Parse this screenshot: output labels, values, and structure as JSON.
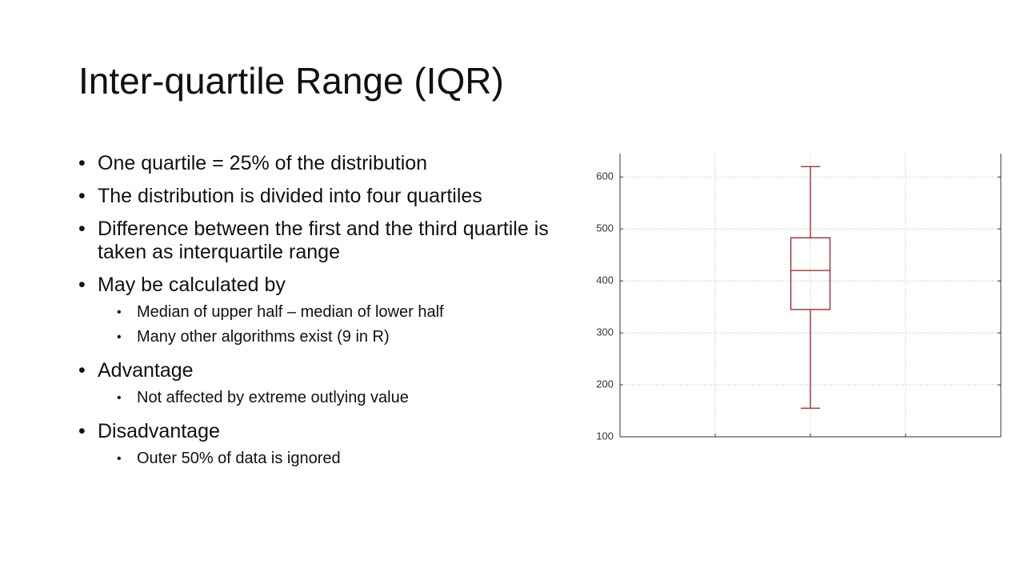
{
  "title": "Inter-quartile Range (IQR)",
  "bullets": [
    {
      "text": "One quartile = 25% of the distribution"
    },
    {
      "text": "The distribution is divided into four quartiles"
    },
    {
      "text": "Difference between the first and the third quartile is taken as interquartile range"
    },
    {
      "text": "May be calculated by",
      "sub": [
        "Median of upper half – median of lower half",
        "Many other algorithms exist (9 in R)"
      ]
    },
    {
      "text": "Advantage",
      "sub": [
        "Not affected by extreme outlying value"
      ]
    },
    {
      "text": "Disadvantage",
      "sub": [
        "Outer 50% of data is ignored"
      ]
    }
  ],
  "chart_data": {
    "type": "box",
    "color": "#9e1b1b",
    "min": 155,
    "q1": 345,
    "median": 420,
    "q3": 483,
    "max": 620,
    "ylim": [
      100,
      645
    ],
    "yticks": [
      100,
      200,
      300,
      400,
      500,
      600
    ],
    "grid": true
  }
}
